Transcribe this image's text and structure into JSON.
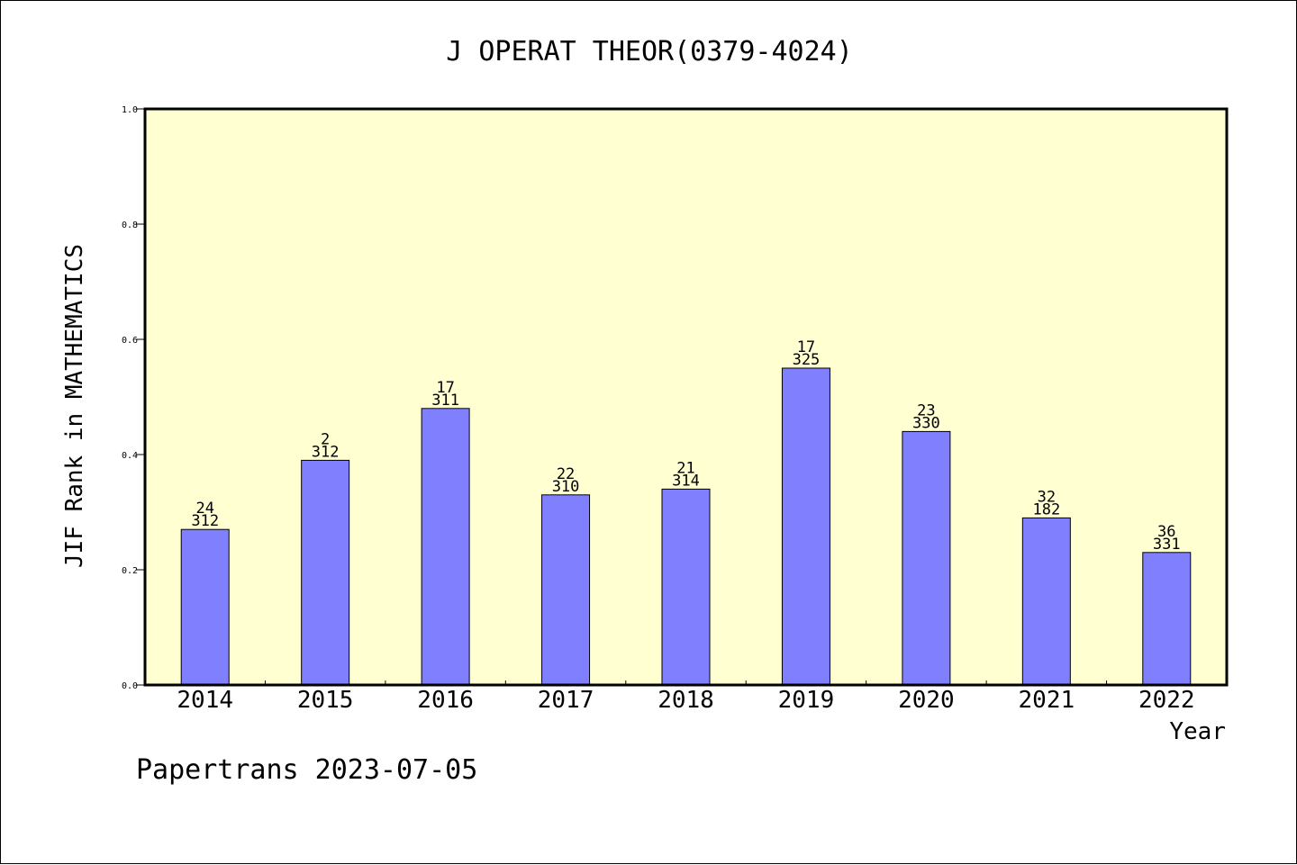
{
  "chart_data": {
    "type": "bar",
    "title": "J OPERAT THEOR(0379-4024)",
    "xlabel": "Year",
    "ylabel": "JIF Rank in MATHEMATICS",
    "categories": [
      "2014",
      "2015",
      "2016",
      "2017",
      "2018",
      "2019",
      "2020",
      "2021",
      "2022"
    ],
    "values": [
      0.27,
      0.39,
      0.48,
      0.33,
      0.34,
      0.55,
      0.44,
      0.29,
      0.23
    ],
    "rank_labels": [
      "24",
      "2",
      "17",
      "22",
      "21",
      "17",
      "23",
      "32",
      "36"
    ],
    "total_labels": [
      "312",
      "312",
      "311",
      "310",
      "314",
      "325",
      "330",
      "182",
      "331"
    ],
    "ylim": [
      0,
      1.0
    ],
    "yticks": [
      "0.0",
      "0.2",
      "0.4",
      "0.6",
      "0.8",
      "1.0"
    ],
    "grid": false,
    "colors": {
      "bar": "#8080ff",
      "plot_background": "#ffffd2",
      "axis": "#000000"
    }
  },
  "footer": {
    "source_text": "Papertrans 2023-07-05"
  }
}
